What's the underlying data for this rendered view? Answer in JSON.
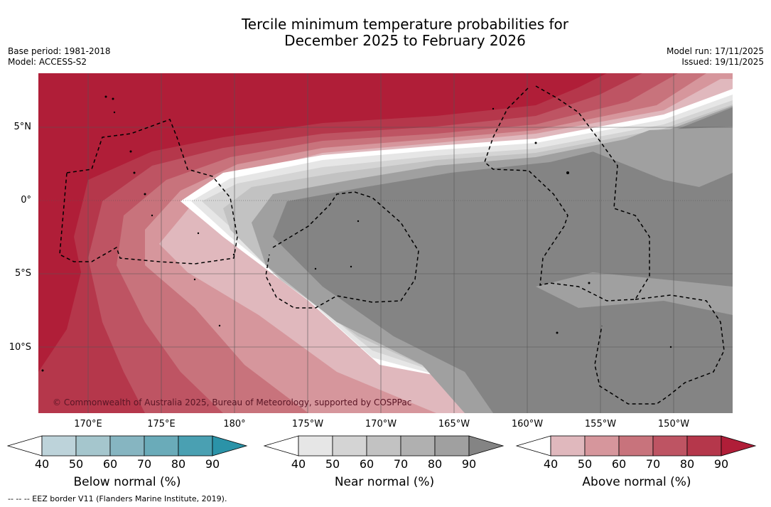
{
  "title": {
    "line1": "Tercile minimum temperature probabilities for",
    "line2": "December 2025 to February 2026"
  },
  "meta_left": {
    "base_period": "Base period: 1981-2018",
    "model": "Model: ACCESS-S2"
  },
  "meta_right": {
    "model_run": "Model run: 17/11/2025",
    "issued": "Issued: 19/11/2025"
  },
  "map": {
    "lat_labels": [
      "5°N",
      "0°",
      "5°S",
      "10°S"
    ],
    "lon_labels": [
      "170°E",
      "175°E",
      "180°",
      "175°W",
      "170°W",
      "165°W",
      "160°W",
      "155°W",
      "150°W"
    ],
    "copyright": "© Commonwealth of Australia 2025, Bureau of Meteorology, supported by COSPPac"
  },
  "colorbars": [
    {
      "name": "below",
      "label": "Below normal (%)",
      "ticks": [
        "40",
        "50",
        "60",
        "70",
        "80",
        "90"
      ],
      "colors": [
        "#ffffff",
        "#bdd3da",
        "#a5c6cd",
        "#86b5c1",
        "#6aabb9",
        "#4aa0b2",
        "#2b93a8"
      ]
    },
    {
      "name": "near",
      "label": "Near normal (%)",
      "ticks": [
        "40",
        "50",
        "60",
        "70",
        "80",
        "90"
      ],
      "colors": [
        "#ffffff",
        "#e6e6e6",
        "#d4d4d4",
        "#c2c2c2",
        "#b0b0b0",
        "#a0a0a0",
        "#848484"
      ]
    },
    {
      "name": "above",
      "label": "Above normal (%)",
      "ticks": [
        "40",
        "50",
        "60",
        "70",
        "80",
        "90"
      ],
      "colors": [
        "#ffffff",
        "#e0b8bd",
        "#d6969c",
        "#c8737c",
        "#be5463",
        "#b5374b",
        "#b01e38"
      ]
    }
  ],
  "footnote": "-- -- -- EEZ border V11 (Flanders Marine Institute, 2019)."
}
